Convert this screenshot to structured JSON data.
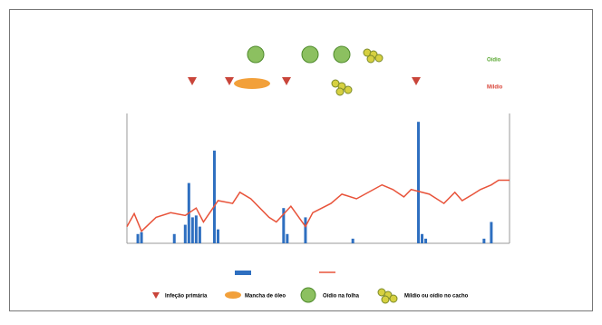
{
  "chart_data": {
    "type": "bar",
    "xlim": [
      0,
      105
    ],
    "ylim": [
      0,
      140
    ],
    "y2lim": [
      0,
      140
    ],
    "series": [
      {
        "type": "bar",
        "color": "#2e6fc0",
        "x": [
          3,
          4,
          13,
          16,
          17,
          18,
          19,
          20,
          24,
          25,
          43,
          44,
          49,
          62,
          80,
          81,
          82,
          98,
          100
        ],
        "values": [
          10,
          12,
          10,
          20,
          65,
          28,
          30,
          18,
          100,
          15,
          38,
          10,
          28,
          5,
          131,
          10,
          5,
          5,
          23
        ]
      },
      {
        "type": "line",
        "color": "#e8533a",
        "axis": "y2",
        "x": [
          0,
          2,
          4,
          8,
          12,
          16,
          19,
          21,
          25,
          29,
          31,
          34,
          39,
          41,
          45,
          49,
          51,
          56,
          59,
          63,
          70,
          73,
          76,
          78,
          83,
          87,
          90,
          92,
          95,
          97,
          100,
          102,
          105
        ],
        "values": [
          18,
          32,
          13,
          28,
          33,
          30,
          38,
          23,
          46,
          43,
          55,
          48,
          28,
          23,
          40,
          18,
          33,
          43,
          53,
          48,
          63,
          58,
          50,
          58,
          53,
          43,
          55,
          46,
          53,
          58,
          63,
          68,
          68
        ]
      }
    ],
    "annotations": [
      {
        "text": "Oídio",
        "color": "#5aa832"
      },
      {
        "text": "Míldio",
        "color": "#d9453a"
      }
    ],
    "legend": [
      "Infeção primária",
      "Mancha de óleo",
      "Oídio na folha",
      "Míldio ou oídio no cacho"
    ]
  }
}
